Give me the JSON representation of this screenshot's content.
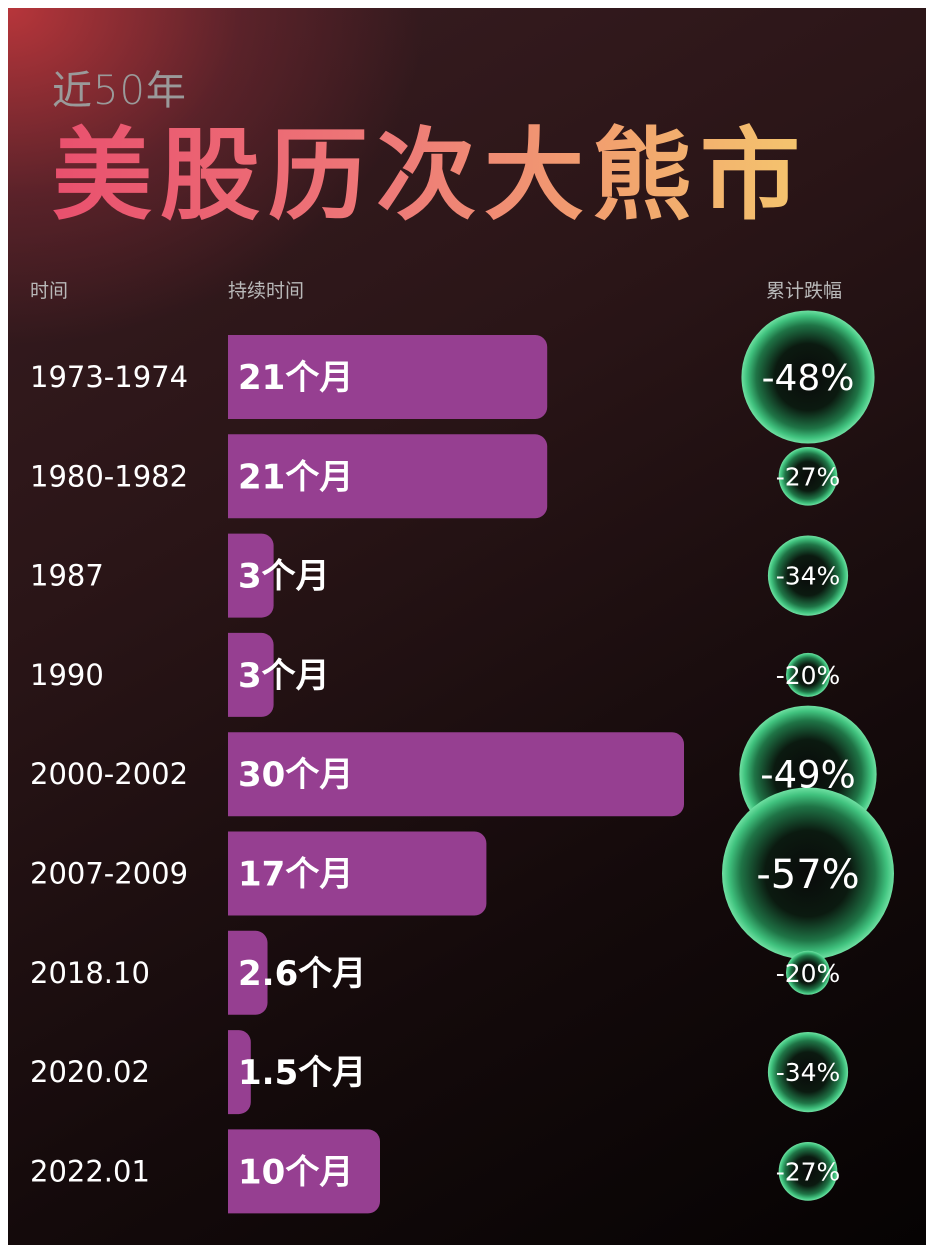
{
  "header": {
    "subtitle": "近50年",
    "title": "美股历次大熊市"
  },
  "columns": {
    "period": "时间",
    "duration": "持续时间",
    "decline": "累计跌幅"
  },
  "colors": {
    "bar": "#963f91",
    "bubble": "#2fa86a",
    "title_gradient": [
      "#e9506e",
      "#f4c66e"
    ]
  },
  "chart_data": {
    "type": "bar",
    "categories": [
      "1973-1974",
      "1980-1982",
      "1987",
      "1990",
      "2000-2002",
      "2007-2009",
      "2018.10",
      "2020.02",
      "2022.01"
    ],
    "series": [
      {
        "name": "持续时间",
        "values": [
          21,
          21,
          3,
          3,
          30,
          17,
          2.6,
          1.5,
          10
        ],
        "labels": [
          "21个月",
          "21个月",
          "3个月",
          "3个月",
          "30个月",
          "17个月",
          "2.6个月",
          "1.5个月",
          "10个月"
        ]
      },
      {
        "name": "累计跌幅",
        "values": [
          -48,
          -27,
          -34,
          -20,
          -49,
          -57,
          -20,
          -34,
          -27
        ],
        "labels": [
          "-48%",
          "-27%",
          "-34%",
          "-20%",
          "-49%",
          "-57%",
          "-20%",
          "-34%",
          "-27%"
        ]
      }
    ],
    "title": "美股历次大熊市",
    "subtitle": "近50年",
    "xlabel": "",
    "ylabel": "",
    "grid": false,
    "legend": "none"
  }
}
